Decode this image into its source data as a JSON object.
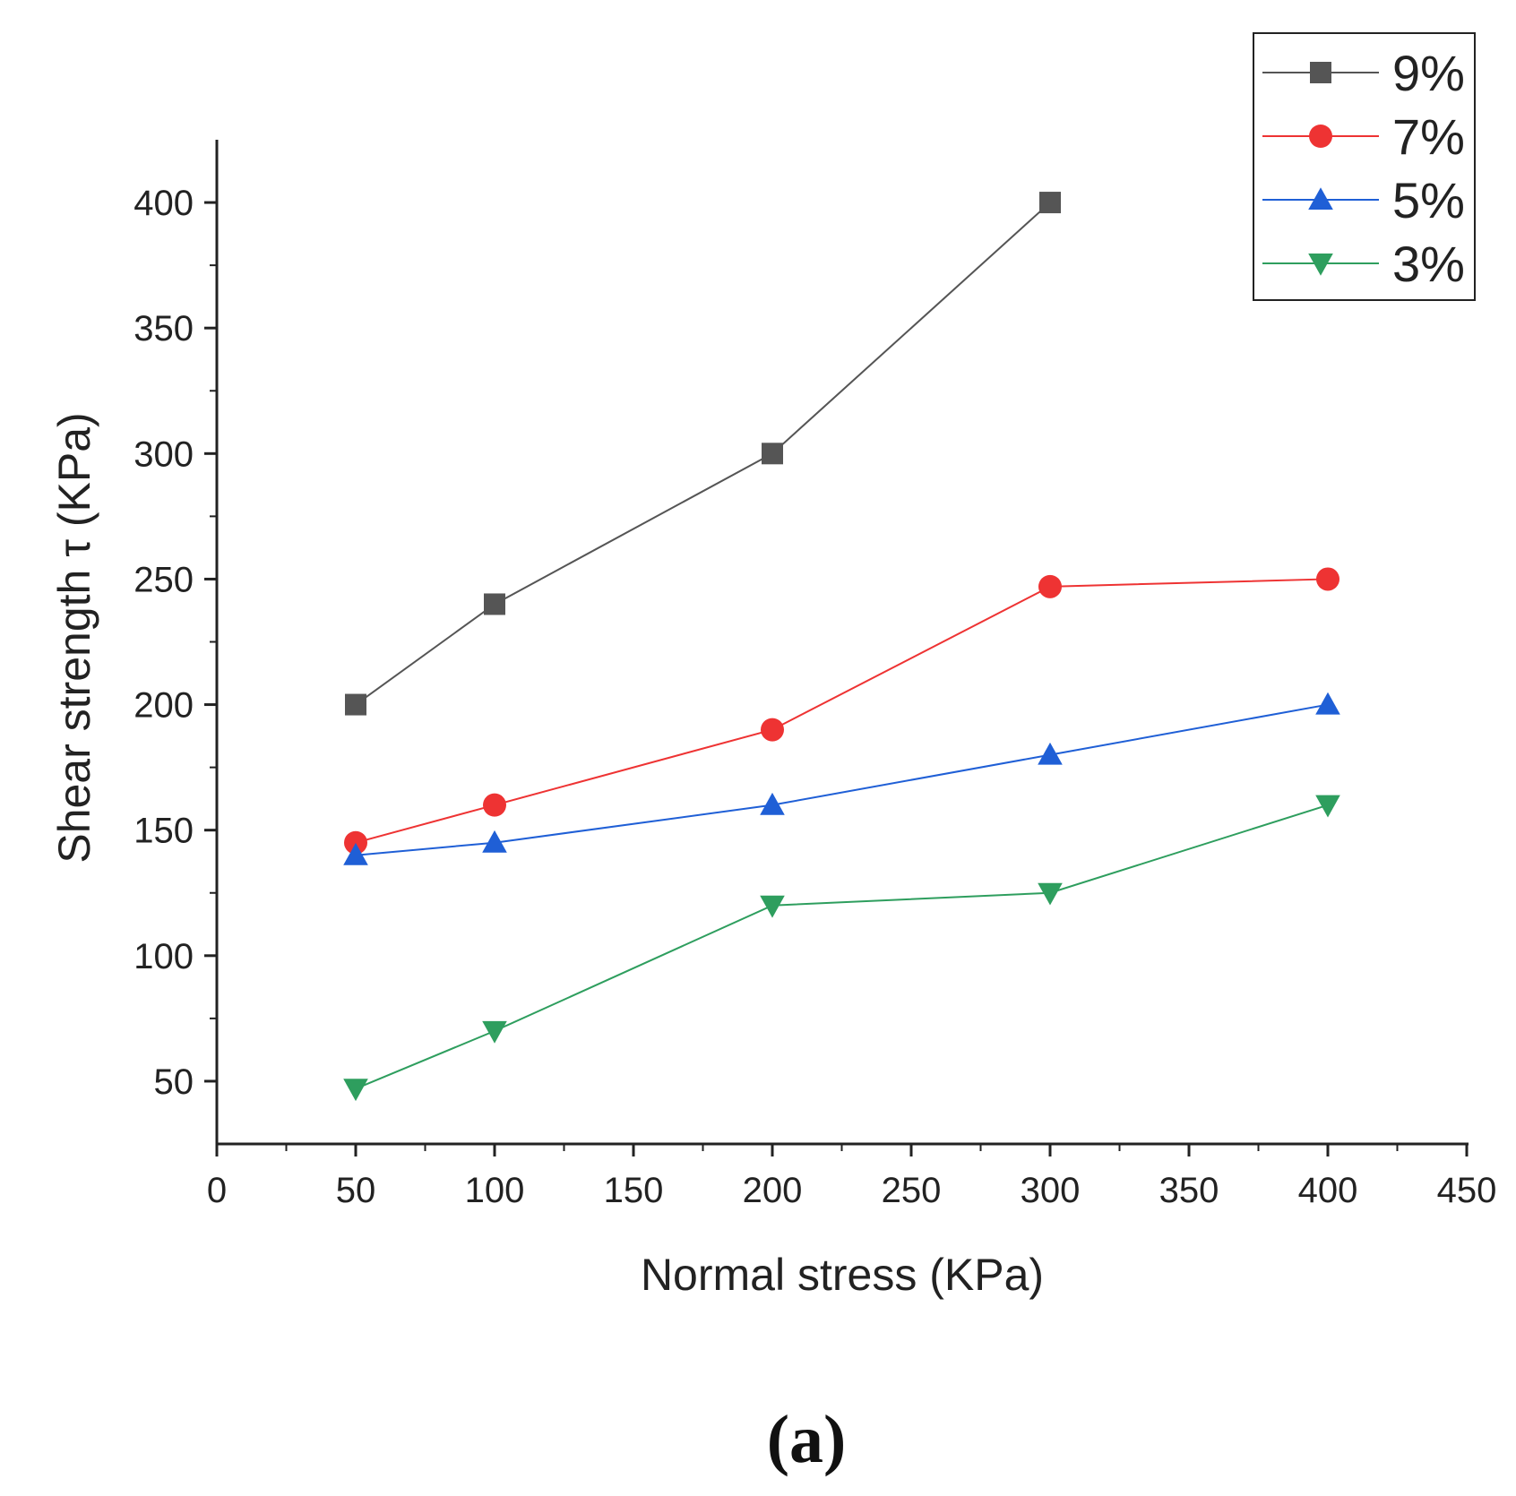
{
  "chart_data": {
    "type": "line",
    "title": "",
    "xlabel": "Normal stress (KPa)",
    "ylabel": "Shear strength τ (KPa)",
    "xlim": [
      0,
      450
    ],
    "ylim": [
      25,
      425
    ],
    "xticks": [
      0,
      50,
      100,
      150,
      200,
      250,
      300,
      350,
      400,
      450
    ],
    "yticks": [
      50,
      100,
      150,
      200,
      250,
      300,
      350,
      400
    ],
    "grid": false,
    "legend_position": "top-right",
    "panel_label": "(a)",
    "series": [
      {
        "name": "9%",
        "color": "#555555",
        "marker": "square",
        "x": [
          50,
          100,
          200,
          300
        ],
        "y": [
          200,
          240,
          300,
          400
        ]
      },
      {
        "name": "7%",
        "color": "#ee3333",
        "marker": "circle",
        "x": [
          50,
          100,
          200,
          300,
          400
        ],
        "y": [
          145,
          160,
          190,
          247,
          250
        ]
      },
      {
        "name": "5%",
        "color": "#1f5fd6",
        "marker": "triangle-up",
        "x": [
          50,
          100,
          200,
          300,
          400
        ],
        "y": [
          140,
          145,
          160,
          180,
          200
        ]
      },
      {
        "name": "3%",
        "color": "#2e9e5e",
        "marker": "triangle-down",
        "x": [
          50,
          100,
          200,
          300,
          400
        ],
        "y": [
          47,
          70,
          120,
          125,
          160
        ]
      }
    ]
  }
}
